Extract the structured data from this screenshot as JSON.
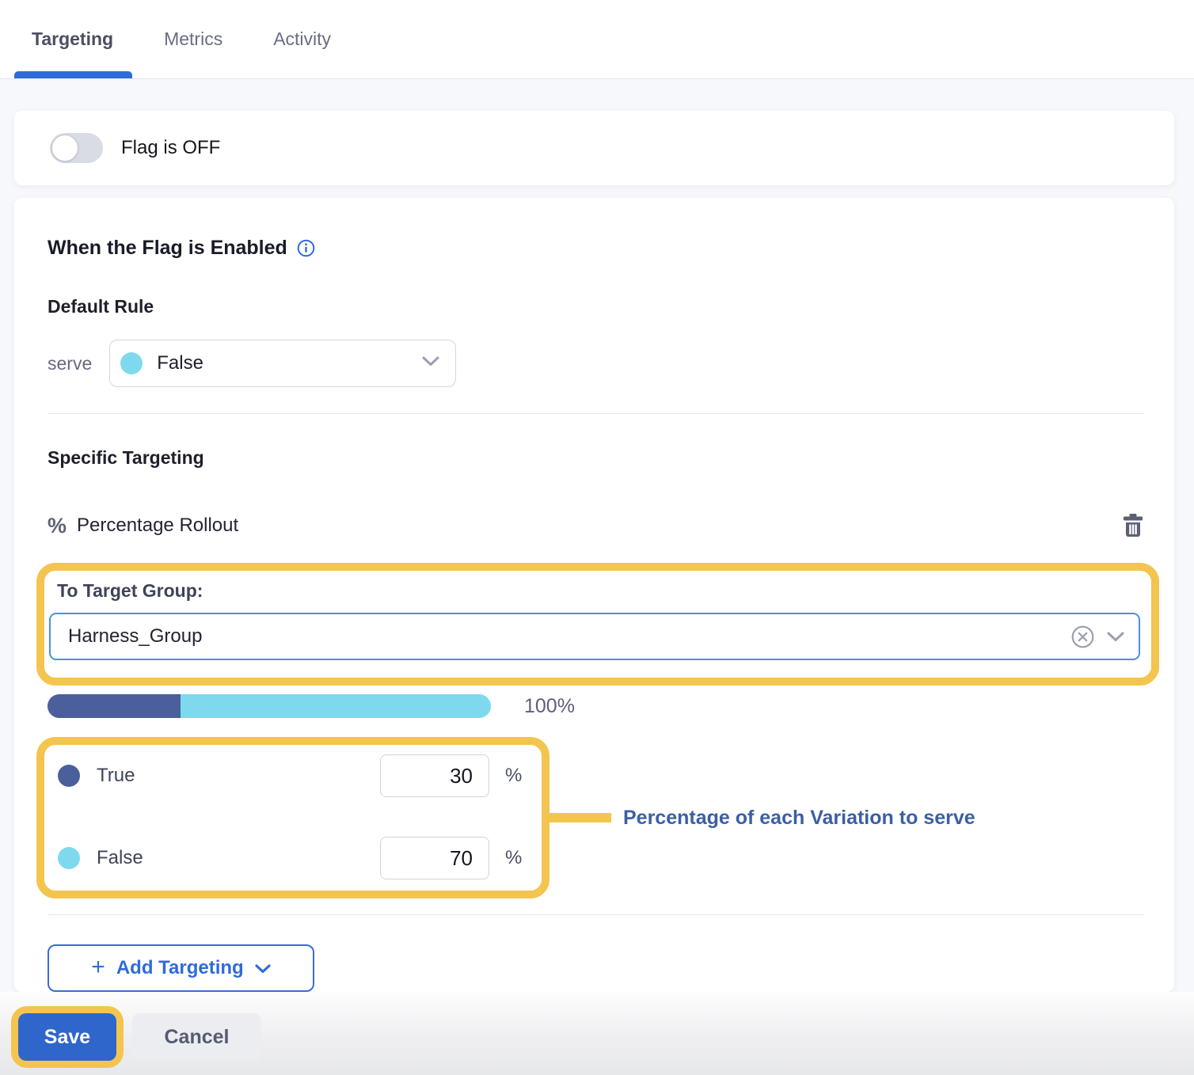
{
  "tabs": [
    {
      "label": "Targeting",
      "active": true
    },
    {
      "label": "Metrics",
      "active": false
    },
    {
      "label": "Activity",
      "active": false
    }
  ],
  "flag_toggle": {
    "label": "Flag is OFF",
    "state": "off"
  },
  "enabled_section": {
    "title": "When the Flag is Enabled",
    "default_rule_label": "Default Rule",
    "serve_label": "serve",
    "serve_value": "False",
    "specific_targeting_label": "Specific Targeting",
    "rollout_icon": "%",
    "rollout_label": "Percentage Rollout"
  },
  "target_group": {
    "label": "To Target Group:",
    "value": "Harness_Group"
  },
  "rollout": {
    "total_label": "100%",
    "variations": [
      {
        "name": "True",
        "value": 30,
        "unit": "%",
        "color": "#4A5F9C"
      },
      {
        "name": "False",
        "value": 70,
        "unit": "%",
        "color": "#7FD9EE"
      }
    ]
  },
  "annotation": {
    "text": "Percentage of each Variation to serve"
  },
  "actions": {
    "add_targeting_label": "Add Targeting",
    "save_label": "Save",
    "cancel_label": "Cancel"
  },
  "colors": {
    "accent_blue": "#2F6BD8",
    "highlight_yellow": "#F3C54F",
    "dark_blue": "#4A5F9C",
    "cyan": "#7FD9EE",
    "save_blue": "#2F66CB",
    "input_border_blue": "#4A8FE6"
  }
}
